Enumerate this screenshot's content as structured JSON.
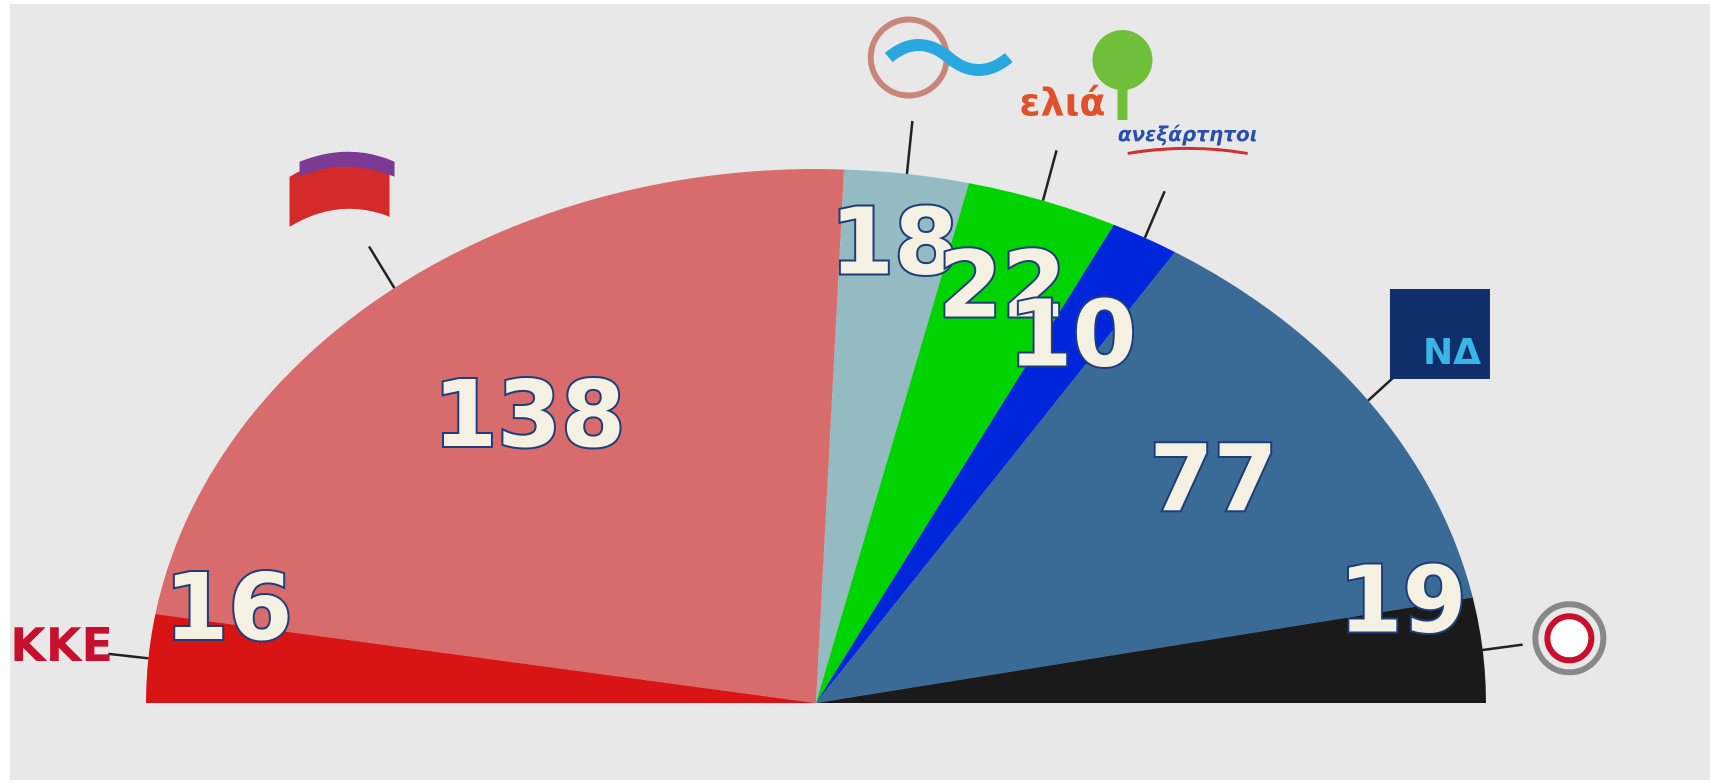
{
  "chart_data": {
    "type": "pie",
    "semicircle": true,
    "categories": [
      "ΚΚΕ",
      null,
      null,
      "ελιά",
      "ανεξάρτητοι",
      "ΝΔ",
      null
    ],
    "values": [
      16,
      138,
      18,
      22,
      10,
      77,
      19
    ],
    "colors": [
      "#d81414",
      "#d86b6b",
      "#94bac2",
      "#00d400",
      "#0026dc",
      "#3a6b96",
      "#1a1a1a"
    ]
  }
}
